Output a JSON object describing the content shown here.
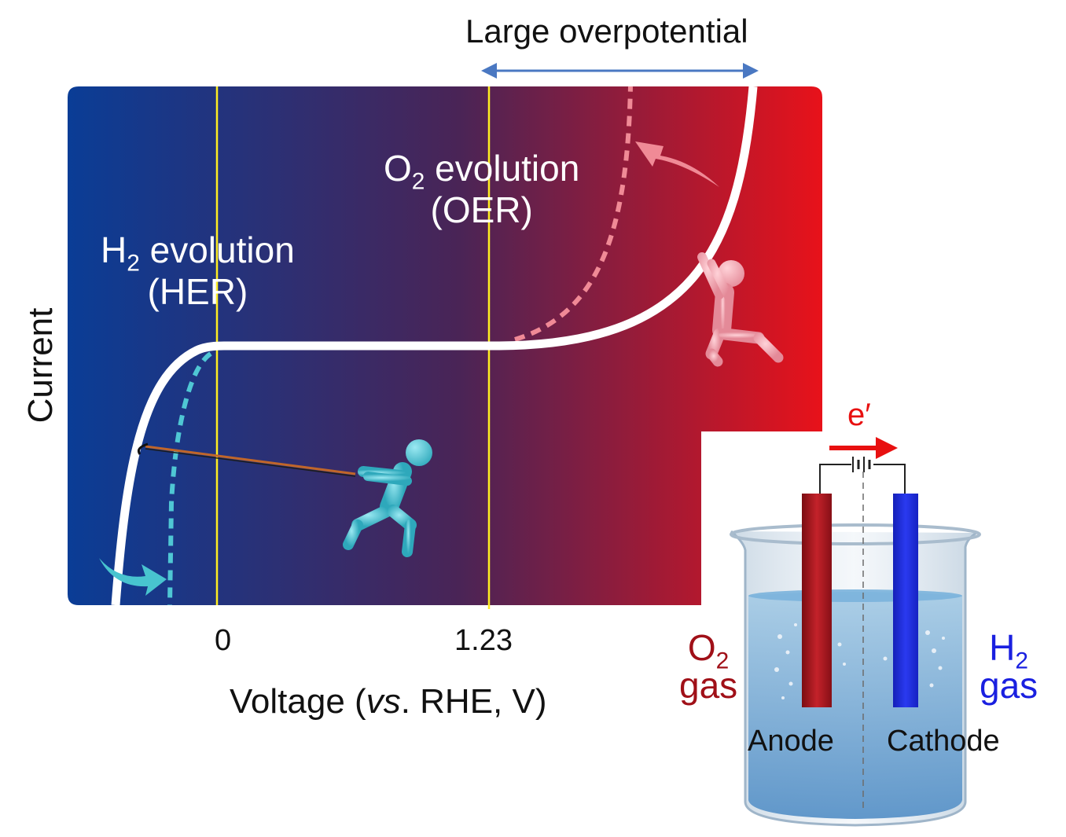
{
  "top_annotation": {
    "label": "Large overpotential",
    "arrow_color": "#4a78c2"
  },
  "her": {
    "line1_prefix": "H",
    "line1_sub": "2",
    "line1_suffix": " evolution",
    "line2": "(HER)"
  },
  "oer": {
    "line1_prefix": "O",
    "line1_sub": "2",
    "line1_suffix": " evolution",
    "line2": "(OER)"
  },
  "axes": {
    "y_label": "Current",
    "x_label_prefix": "Voltage (",
    "x_label_italic": "vs",
    "x_label_suffix": ". RHE, V)",
    "ticks": [
      "0",
      "1.23"
    ]
  },
  "cell": {
    "electron_label": "e′",
    "anode_label": "Anode",
    "cathode_label": "Cathode",
    "o2_prefix": "O",
    "o2_sub": "2",
    "o2_gas": "gas",
    "h2_prefix": "H",
    "h2_sub": "2",
    "h2_gas": "gas"
  },
  "colors": {
    "gradient_left": "#0a3d96",
    "gradient_mid": "#4a2456",
    "gradient_right": "#e8121a",
    "her_catalyst_curve": "#4fc7d4",
    "oer_catalyst_curve": "#f08a96",
    "marker_lines": "#ffee22",
    "o2_text": "#a01018",
    "h2_text": "#1a20e0",
    "electron": "#e81010"
  }
}
